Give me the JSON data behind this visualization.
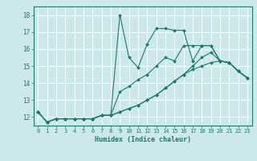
{
  "xlabel": "Humidex (Indice chaleur)",
  "ylabel": "",
  "bg_color": "#cce8ea",
  "grid_color": "#ffffff",
  "line_color": "#1a7a6e",
  "xlim": [
    -0.5,
    23.5
  ],
  "ylim": [
    11.5,
    18.5
  ],
  "xticks": [
    0,
    1,
    2,
    3,
    4,
    5,
    6,
    7,
    8,
    9,
    10,
    11,
    12,
    13,
    14,
    15,
    16,
    17,
    18,
    19,
    20,
    21,
    22,
    23
  ],
  "yticks": [
    12,
    13,
    14,
    15,
    16,
    17,
    18
  ],
  "series": [
    [
      12.3,
      11.7,
      11.9,
      11.9,
      11.9,
      11.9,
      11.9,
      12.1,
      12.1,
      18.0,
      15.5,
      14.9,
      16.3,
      17.2,
      17.2,
      17.1,
      17.1,
      15.3,
      16.2,
      16.2,
      15.3,
      15.2,
      14.7,
      14.3
    ],
    [
      12.3,
      11.7,
      11.9,
      11.9,
      11.9,
      11.9,
      11.9,
      12.1,
      12.1,
      13.5,
      13.8,
      14.2,
      14.5,
      15.0,
      15.5,
      15.3,
      16.2,
      16.2,
      16.2,
      16.2,
      15.3,
      15.2,
      14.7,
      14.3
    ],
    [
      12.3,
      11.7,
      11.9,
      11.9,
      11.9,
      11.9,
      11.9,
      12.1,
      12.1,
      12.3,
      12.5,
      12.7,
      13.0,
      13.3,
      13.7,
      14.1,
      14.5,
      15.0,
      15.5,
      15.8,
      15.3,
      15.2,
      14.7,
      14.3
    ],
    [
      12.3,
      11.7,
      11.9,
      11.9,
      11.9,
      11.9,
      11.9,
      12.1,
      12.1,
      12.3,
      12.5,
      12.7,
      13.0,
      13.3,
      13.7,
      14.1,
      14.5,
      14.8,
      15.0,
      15.2,
      15.3,
      15.2,
      14.7,
      14.3
    ]
  ]
}
